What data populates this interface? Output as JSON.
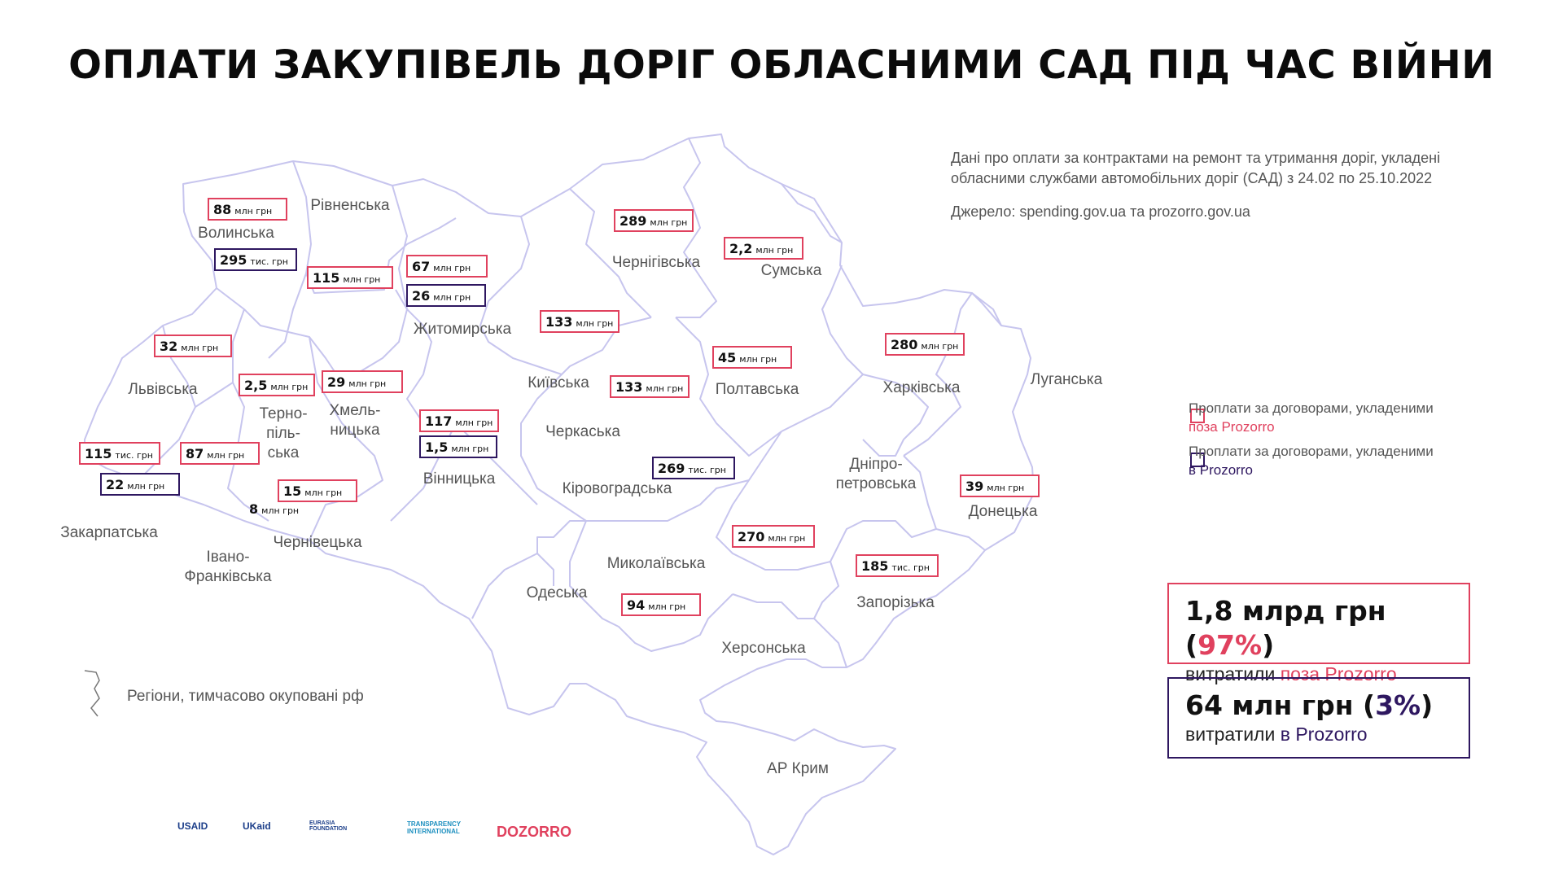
{
  "title": "ОПЛАТИ ЗАКУПІВЕЛЬ ДОРІГ ОБЛАСНИМИ САД ПІД ЧАС ВІЙНИ",
  "info": {
    "line1": "Дані про оплати за контрактами на ремонт та утримання доріг, укладені",
    "line2": "обласними службами автомобільних доріг (САД) з 24.02 по 25.10.2022",
    "source": "Джерело: spending.gov.ua та prozorro.gov.ua"
  },
  "legend": {
    "outside_line1": "Проплати за договорами, укладеними",
    "outside_line2": "поза Prozorro",
    "inside_line1": "Проплати за договорами, укладеними",
    "inside_line2": "в Prozorro"
  },
  "totals": {
    "outside_value": "1,8 млрд грн (",
    "outside_pct": "97%",
    "outside_close": ")",
    "outside_text": "витратили",
    "outside_highlight": "поза Prozorro",
    "inside_value": "64 млн грн (",
    "inside_pct": "3%",
    "inside_close": ")",
    "inside_text": "витратили",
    "inside_highlight": "в Prozorro"
  },
  "occupied_label": "Регіони, тимчасово окуповані рф",
  "colors": {
    "outside": "#e0415e",
    "inside": "#2e1760",
    "border": "#c7c5ee"
  },
  "regions": [
    {
      "id": "volynska",
      "lines": [
        "Волинська"
      ]
    },
    {
      "id": "rivnenska",
      "lines": [
        "Рівненська"
      ]
    },
    {
      "id": "zhytomyrska",
      "lines": [
        "Житомирська"
      ]
    },
    {
      "id": "kyivska",
      "lines": [
        "Київська"
      ]
    },
    {
      "id": "chernihivska",
      "lines": [
        "Чернігівська"
      ]
    },
    {
      "id": "sumska",
      "lines": [
        "Сумська"
      ]
    },
    {
      "id": "lvivska",
      "lines": [
        "Львівська"
      ]
    },
    {
      "id": "ternopilska",
      "lines": [
        "Терно-",
        "піль-",
        "ська"
      ]
    },
    {
      "id": "khmelnytska",
      "lines": [
        "Хмель-",
        "ницька"
      ]
    },
    {
      "id": "vinnytska",
      "lines": [
        "Вінницька"
      ]
    },
    {
      "id": "cherkaska",
      "lines": [
        "Черкаська"
      ]
    },
    {
      "id": "poltavska",
      "lines": [
        "Полтавська"
      ]
    },
    {
      "id": "kharkivska",
      "lines": [
        "Харківська"
      ]
    },
    {
      "id": "luhanska",
      "lines": [
        "Луганська"
      ]
    },
    {
      "id": "zakarpatska",
      "lines": [
        "Закарпатська"
      ]
    },
    {
      "id": "ivanofrankivska",
      "lines": [
        "Івано-",
        "Франківська"
      ]
    },
    {
      "id": "chernivetska",
      "lines": [
        "Чернівецька"
      ]
    },
    {
      "id": "kirovohradska",
      "lines": [
        "Кіровоградська"
      ]
    },
    {
      "id": "dnipropetrovska",
      "lines": [
        "Дніпро-",
        "петровська"
      ]
    },
    {
      "id": "donetska",
      "lines": [
        "Донецька"
      ]
    },
    {
      "id": "mykolaivska",
      "lines": [
        "Миколаївська"
      ]
    },
    {
      "id": "odeska",
      "lines": [
        "Одеська"
      ]
    },
    {
      "id": "zaporizka",
      "lines": [
        "Запорізька"
      ]
    },
    {
      "id": "khersonska",
      "lines": [
        "Херсонська"
      ]
    },
    {
      "id": "krym",
      "lines": [
        "АР Крим"
      ]
    }
  ],
  "values": [
    {
      "region": "volynska",
      "num": "88",
      "unit": "млн грн",
      "kind": "outside"
    },
    {
      "region": "volynska",
      "num": "295",
      "unit": "тис. грн",
      "kind": "inside"
    },
    {
      "region": "rivnenska",
      "num": "115",
      "unit": "млн грн",
      "kind": "outside"
    },
    {
      "region": "zhytomyrska",
      "num": "67",
      "unit": "млн грн",
      "kind": "outside"
    },
    {
      "region": "zhytomyrska",
      "num": "26",
      "unit": "млн грн",
      "kind": "inside"
    },
    {
      "region": "chernihivska",
      "num": "289",
      "unit": "млн грн",
      "kind": "outside"
    },
    {
      "region": "sumska",
      "num": "2,2",
      "unit": "млн грн",
      "kind": "outside"
    },
    {
      "region": "kyivska",
      "num": "133",
      "unit": "млн грн",
      "kind": "outside"
    },
    {
      "region": "lvivska",
      "num": "32",
      "unit": "млн грн",
      "kind": "outside"
    },
    {
      "region": "ternopilska",
      "num": "2,5",
      "unit": "млн грн",
      "kind": "outside"
    },
    {
      "region": "khmelnytska",
      "num": "29",
      "unit": "млн грн",
      "kind": "outside"
    },
    {
      "region": "cherkaska",
      "num": "133",
      "unit": "млн грн",
      "kind": "outside"
    },
    {
      "region": "poltavska",
      "num": "45",
      "unit": "млн грн",
      "kind": "outside"
    },
    {
      "region": "kharkivska",
      "num": "280",
      "unit": "млн грн",
      "kind": "outside"
    },
    {
      "region": "vinnytska",
      "num": "117",
      "unit": "млн грн",
      "kind": "outside"
    },
    {
      "region": "vinnytska",
      "num": "1,5",
      "unit": "млн грн",
      "kind": "inside"
    },
    {
      "region": "zakarpatska",
      "num": "115",
      "unit": "тис. грн",
      "kind": "outside"
    },
    {
      "region": "ivanofrankivska",
      "num": "87",
      "unit": "млн грн",
      "kind": "outside"
    },
    {
      "region": "zakarpatska",
      "num": "22",
      "unit": "млн грн",
      "kind": "inside"
    },
    {
      "region": "chernivetska",
      "num": "15",
      "unit": "млн грн",
      "kind": "outside"
    },
    {
      "region": "chernivetska",
      "num": "8",
      "unit": "млн грн",
      "kind": "none"
    },
    {
      "region": "kirovohradska",
      "num": "269",
      "unit": "тис. грн",
      "kind": "inside"
    },
    {
      "region": "donetska",
      "num": "39",
      "unit": "млн грн",
      "kind": "outside"
    },
    {
      "region": "dnipropetrovska",
      "num": "270",
      "unit": "млн грн",
      "kind": "outside"
    },
    {
      "region": "zaporizka",
      "num": "185",
      "unit": "тис. грн",
      "kind": "outside"
    },
    {
      "region": "mykolaivska",
      "num": "94",
      "unit": "млн грн",
      "kind": "outside"
    }
  ],
  "logos": [
    "USAID",
    "UKaid",
    "EURASIA FOUNDATION",
    "TRANSPARENCY INTERNATIONAL",
    "DOZORRO"
  ]
}
